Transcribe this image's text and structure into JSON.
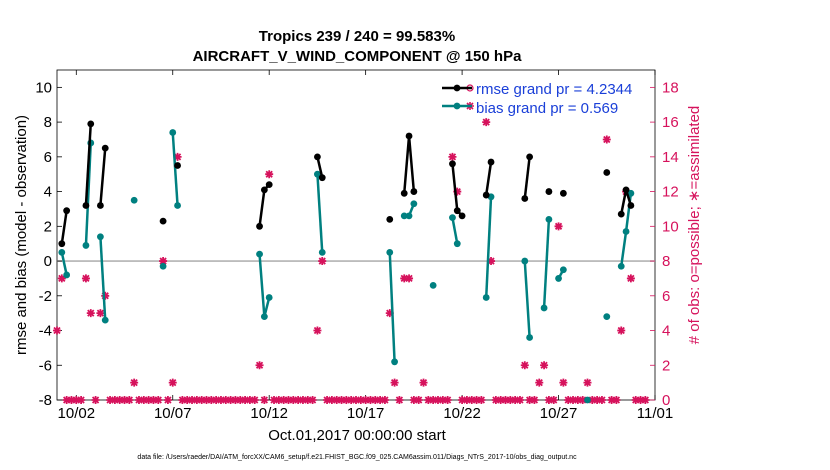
{
  "chart_data": {
    "type": "line",
    "title": "Tropics 239 / 240 = 99.583%",
    "subtitle": "AIRCRAFT_V_WIND_COMPONENT @ 150 hPa",
    "xlabel": "Oct.01,2017 00:00:00 start",
    "ylabel_left": "rmse and bias (model - observation)",
    "ylabel_right": "# of obs: o=possible; ∗=assimilated",
    "footnote": "data file: /Users/raeder/DAI/ATM_forcXX/CAM6_setup/f.e21.FHIST_BGC.f09_025.CAM6assim.011/Diags_NTrS_2017-10/obs_diag_output.nc",
    "x_range_days": [
      0.5,
      31.5
    ],
    "x_tick_values": [
      1.5,
      6.5,
      11.5,
      16.5,
      21.5,
      26.5,
      31.5
    ],
    "x_tick_labels": [
      "10/02",
      "10/07",
      "10/12",
      "10/17",
      "10/22",
      "10/27",
      "11/01"
    ],
    "y_left": {
      "range": [
        -8,
        11
      ],
      "ticks": [
        -8,
        -6,
        -4,
        -2,
        0,
        2,
        4,
        6,
        8,
        10
      ],
      "tick_labels": [
        "-8",
        "-6",
        "-4",
        "-2",
        "0",
        "2",
        "4",
        "6",
        "8",
        "10"
      ]
    },
    "y_right": {
      "range": [
        0,
        19
      ],
      "ticks": [
        0,
        2,
        4,
        6,
        8,
        10,
        12,
        14,
        16,
        18
      ],
      "tick_labels": [
        "0",
        "2",
        "4",
        "6",
        "8",
        "10",
        "12",
        "14",
        "16",
        "18"
      ]
    },
    "zero_line": 0,
    "legend": {
      "placement": "top-right",
      "entries": [
        {
          "marker": "circle",
          "color": "#d6125c",
          "label": ""
        },
        {
          "marker": "asterisk",
          "color": "#d6125c",
          "label": ""
        },
        {
          "marker": "line-dot",
          "color": "#000000",
          "label": "rmse grand pr = 4.2344"
        },
        {
          "marker": "line-dot",
          "color": "#008080",
          "label": "bias grand pr = 0.569"
        }
      ]
    },
    "colors": {
      "rmse": "#000000",
      "bias": "#008080",
      "obs": "#d6125c",
      "label_blue": "#1a3fd8",
      "zero_line": "#b3b3b3"
    },
    "series": [
      {
        "name": "rmse grand pr = 4.2344",
        "axis": "left",
        "segments": [
          [
            [
              0.75,
              1.0
            ],
            [
              1.0,
              2.9
            ]
          ],
          [
            [
              2.0,
              3.2
            ],
            [
              2.25,
              7.9
            ]
          ],
          [
            [
              2.75,
              3.2
            ],
            [
              3.0,
              6.5
            ]
          ],
          [
            [
              6.0,
              2.3
            ]
          ],
          [
            [
              6.75,
              5.5
            ]
          ],
          [
            [
              11.0,
              2.0
            ],
            [
              11.25,
              4.1
            ],
            [
              11.5,
              4.4
            ]
          ],
          [
            [
              14.0,
              6.0
            ],
            [
              14.25,
              4.8
            ]
          ],
          [
            [
              17.75,
              2.4
            ]
          ],
          [
            [
              18.5,
              3.9
            ],
            [
              18.75,
              7.2
            ],
            [
              19.0,
              4.0
            ]
          ],
          [
            [
              21.0,
              5.6
            ],
            [
              21.25,
              2.9
            ],
            [
              21.5,
              2.6
            ]
          ],
          [
            [
              22.75,
              3.8
            ],
            [
              23.0,
              5.7
            ]
          ],
          [
            [
              24.75,
              3.6
            ],
            [
              25.0,
              6.0
            ]
          ],
          [
            [
              26.0,
              4.0
            ]
          ],
          [
            [
              26.75,
              3.9
            ]
          ],
          [
            [
              29.0,
              5.1
            ]
          ],
          [
            [
              29.75,
              2.7
            ],
            [
              30.0,
              4.1
            ],
            [
              30.25,
              3.2
            ]
          ]
        ]
      },
      {
        "name": "bias grand pr = 0.569",
        "axis": "left",
        "segments": [
          [
            [
              0.75,
              0.5
            ],
            [
              1.0,
              -0.8
            ]
          ],
          [
            [
              2.0,
              0.9
            ],
            [
              2.25,
              6.8
            ]
          ],
          [
            [
              2.75,
              1.4
            ],
            [
              3.0,
              -3.4
            ]
          ],
          [
            [
              4.5,
              3.5
            ]
          ],
          [
            [
              6.0,
              -0.3
            ]
          ],
          [
            [
              6.5,
              7.4
            ],
            [
              6.75,
              3.2
            ]
          ],
          [
            [
              11.0,
              0.4
            ],
            [
              11.25,
              -3.2
            ],
            [
              11.5,
              -2.1
            ]
          ],
          [
            [
              14.0,
              5.0
            ],
            [
              14.25,
              0.5
            ]
          ],
          [
            [
              17.75,
              0.5
            ],
            [
              18.0,
              -5.8
            ]
          ],
          [
            [
              18.5,
              2.6
            ],
            [
              18.75,
              2.6
            ],
            [
              19.0,
              3.3
            ]
          ],
          [
            [
              20.0,
              -1.4
            ]
          ],
          [
            [
              21.0,
              2.5
            ],
            [
              21.25,
              1.0
            ]
          ],
          [
            [
              22.75,
              -2.1
            ],
            [
              23.0,
              3.7
            ]
          ],
          [
            [
              24.75,
              0.0
            ],
            [
              25.0,
              -4.4
            ]
          ],
          [
            [
              25.75,
              -2.7
            ],
            [
              26.0,
              2.4
            ]
          ],
          [
            [
              26.5,
              -1.0
            ],
            [
              26.75,
              -0.5
            ]
          ],
          [
            [
              28.0,
              -8.0
            ]
          ],
          [
            [
              29.0,
              -3.2
            ]
          ],
          [
            [
              29.75,
              -0.3
            ],
            [
              30.0,
              1.7
            ],
            [
              30.25,
              3.9
            ]
          ]
        ]
      },
      {
        "name": "# of obs assimilated",
        "axis": "right",
        "points": [
          [
            0.5,
            4
          ],
          [
            0.75,
            7
          ],
          [
            1.0,
            0
          ],
          [
            1.25,
            0
          ],
          [
            1.5,
            0
          ],
          [
            1.75,
            0
          ],
          [
            2.0,
            7
          ],
          [
            2.25,
            5
          ],
          [
            2.5,
            0
          ],
          [
            2.75,
            5
          ],
          [
            3.0,
            6
          ],
          [
            3.25,
            0
          ],
          [
            3.5,
            0
          ],
          [
            3.75,
            0
          ],
          [
            4.0,
            0
          ],
          [
            4.25,
            0
          ],
          [
            4.5,
            1
          ],
          [
            4.75,
            0
          ],
          [
            5.0,
            0
          ],
          [
            5.25,
            0
          ],
          [
            5.5,
            0
          ],
          [
            5.75,
            0
          ],
          [
            6.0,
            8
          ],
          [
            6.25,
            0
          ],
          [
            6.5,
            1
          ],
          [
            6.75,
            14
          ],
          [
            7.0,
            0
          ],
          [
            7.25,
            0
          ],
          [
            7.5,
            0
          ],
          [
            7.75,
            0
          ],
          [
            8.0,
            0
          ],
          [
            8.25,
            0
          ],
          [
            8.5,
            0
          ],
          [
            8.75,
            0
          ],
          [
            9.0,
            0
          ],
          [
            9.25,
            0
          ],
          [
            9.5,
            0
          ],
          [
            9.75,
            0
          ],
          [
            10.0,
            0
          ],
          [
            10.25,
            0
          ],
          [
            10.5,
            0
          ],
          [
            10.75,
            0
          ],
          [
            11.0,
            2
          ],
          [
            11.25,
            0
          ],
          [
            11.5,
            13
          ],
          [
            11.75,
            0
          ],
          [
            12.0,
            0
          ],
          [
            12.25,
            0
          ],
          [
            12.5,
            0
          ],
          [
            12.75,
            0
          ],
          [
            13.0,
            0
          ],
          [
            13.25,
            0
          ],
          [
            13.5,
            0
          ],
          [
            13.75,
            0
          ],
          [
            14.0,
            4
          ],
          [
            14.25,
            8
          ],
          [
            14.5,
            0
          ],
          [
            14.75,
            0
          ],
          [
            15.0,
            0
          ],
          [
            15.25,
            0
          ],
          [
            15.5,
            0
          ],
          [
            15.75,
            0
          ],
          [
            16.0,
            0
          ],
          [
            16.25,
            0
          ],
          [
            16.5,
            0
          ],
          [
            16.75,
            0
          ],
          [
            17.0,
            0
          ],
          [
            17.25,
            0
          ],
          [
            17.5,
            0
          ],
          [
            17.75,
            5
          ],
          [
            18.0,
            1
          ],
          [
            18.25,
            0
          ],
          [
            18.5,
            7
          ],
          [
            18.75,
            7
          ],
          [
            19.0,
            0
          ],
          [
            19.25,
            0
          ],
          [
            19.5,
            1
          ],
          [
            19.75,
            0
          ],
          [
            20.0,
            0
          ],
          [
            20.25,
            0
          ],
          [
            20.5,
            0
          ],
          [
            20.75,
            0
          ],
          [
            21.0,
            14
          ],
          [
            21.25,
            12
          ],
          [
            21.5,
            0
          ],
          [
            21.75,
            0
          ],
          [
            22.0,
            0
          ],
          [
            22.25,
            0
          ],
          [
            22.5,
            0
          ],
          [
            22.75,
            16
          ],
          [
            23.0,
            8
          ],
          [
            23.25,
            0
          ],
          [
            23.5,
            0
          ],
          [
            23.75,
            0
          ],
          [
            24.0,
            0
          ],
          [
            24.25,
            0
          ],
          [
            24.5,
            0
          ],
          [
            24.75,
            2
          ],
          [
            25.0,
            0
          ],
          [
            25.25,
            0
          ],
          [
            25.5,
            1
          ],
          [
            25.75,
            2
          ],
          [
            26.0,
            0
          ],
          [
            26.25,
            0
          ],
          [
            26.5,
            10
          ],
          [
            26.75,
            1
          ],
          [
            27.0,
            0
          ],
          [
            27.25,
            0
          ],
          [
            27.5,
            0
          ],
          [
            27.75,
            0
          ],
          [
            28.0,
            1
          ],
          [
            28.25,
            0
          ],
          [
            28.5,
            0
          ],
          [
            28.75,
            0
          ],
          [
            29.0,
            15
          ],
          [
            29.25,
            0
          ],
          [
            29.5,
            0
          ],
          [
            29.75,
            4
          ],
          [
            30.0,
            12
          ],
          [
            30.25,
            7
          ],
          [
            30.5,
            0
          ],
          [
            30.75,
            0
          ],
          [
            31.0,
            0
          ]
        ]
      }
    ]
  }
}
